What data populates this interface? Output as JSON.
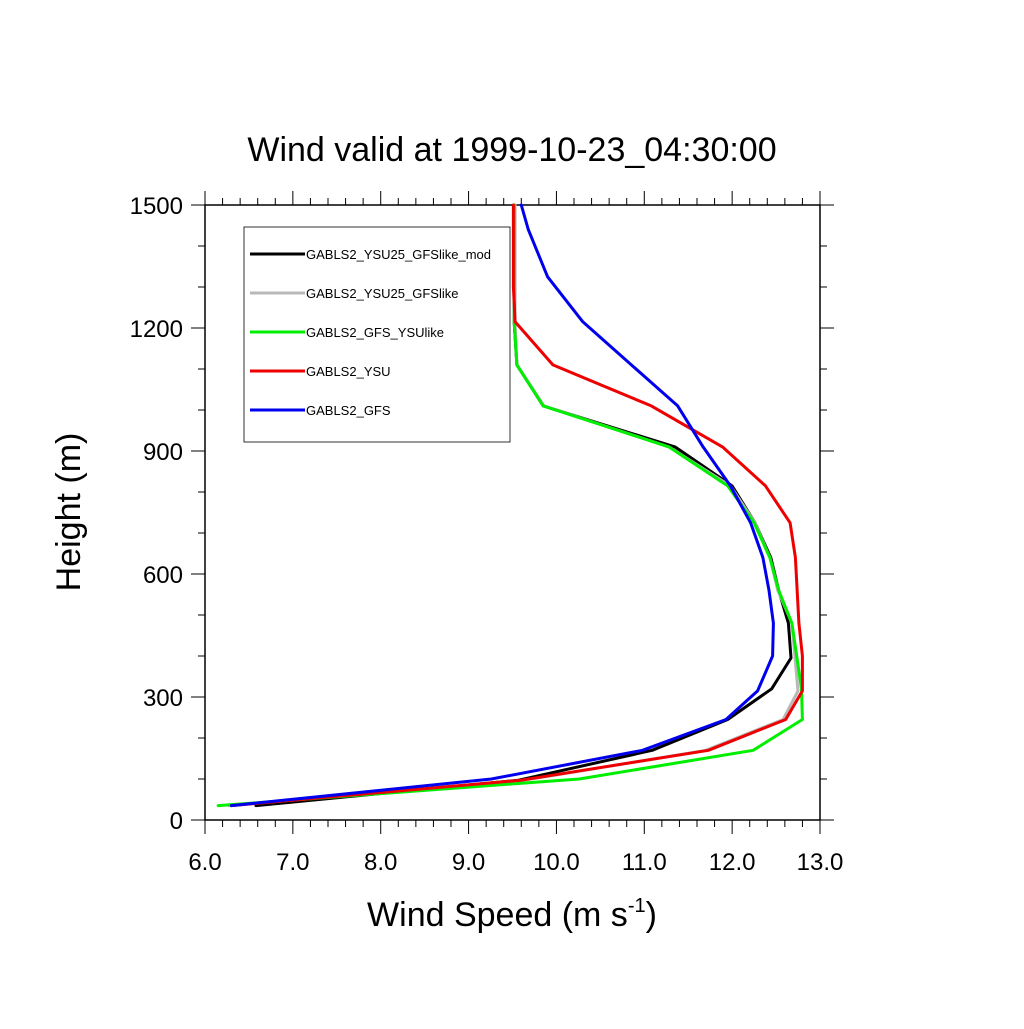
{
  "chart_data": {
    "type": "line",
    "title": "Wind valid at 1999-10-23_04:30:00",
    "xlabel": "Wind Speed (m s",
    "xlabel_superscript": "-1",
    "xlabel_suffix": ")",
    "ylabel": "Height (m)",
    "xlim": [
      6.0,
      13.0
    ],
    "ylim": [
      0,
      1500
    ],
    "xticks": [
      6.0,
      7.0,
      8.0,
      9.0,
      10.0,
      11.0,
      12.0,
      13.0
    ],
    "xtick_labels": [
      "6.0",
      "7.0",
      "8.0",
      "9.0",
      "10.0",
      "11.0",
      "12.0",
      "13.0"
    ],
    "yticks": [
      0,
      300,
      600,
      900,
      1200,
      1500
    ],
    "ytick_labels": [
      "0",
      "300",
      "600",
      "900",
      "1200",
      "1500"
    ],
    "grid": false,
    "legend_position": "top-left",
    "series": [
      {
        "name": "GABLS2_YSU25_GFSlike_mod",
        "color": "#000000",
        "x": [
          6.58,
          9.57,
          11.09,
          11.95,
          12.45,
          12.67,
          12.64,
          12.53,
          12.44,
          12.26,
          12.0,
          11.35,
          9.85,
          9.55,
          9.52,
          9.52
        ],
        "y": [
          35,
          97,
          170,
          245,
          320,
          395,
          480,
          560,
          640,
          725,
          815,
          910,
          1010,
          1110,
          1210,
          1500
        ]
      },
      {
        "name": "GABLS2_YSU25_GFSlike",
        "color": "#b8b8b8",
        "x": [
          6.27,
          9.64,
          11.7,
          12.58,
          12.75,
          12.68,
          12.52,
          12.43,
          12.26,
          11.98,
          11.28,
          9.86,
          9.55,
          9.53,
          9.53
        ],
        "y": [
          35,
          97,
          170,
          245,
          315,
          480,
          560,
          640,
          725,
          815,
          910,
          1010,
          1110,
          1210,
          1500
        ]
      },
      {
        "name": "GABLS2_GFS_YSUlike",
        "color": "#00ee00",
        "x": [
          6.15,
          10.26,
          12.24,
          12.8,
          12.79,
          12.68,
          12.53,
          12.43,
          12.25,
          11.95,
          11.28,
          9.85,
          9.55,
          9.52,
          9.52
        ],
        "y": [
          35,
          100,
          170,
          245,
          320,
          480,
          560,
          640,
          725,
          815,
          910,
          1010,
          1110,
          1210,
          1500
        ]
      },
      {
        "name": "GABLS2_YSU",
        "color": "#ee0000",
        "x": [
          6.3,
          9.6,
          11.73,
          12.61,
          12.8,
          12.8,
          12.76,
          12.72,
          12.66,
          12.38,
          11.89,
          11.08,
          9.96,
          9.53,
          9.51,
          9.51
        ],
        "y": [
          35,
          97,
          170,
          245,
          315,
          400,
          480,
          640,
          725,
          815,
          910,
          1010,
          1110,
          1215,
          1300,
          1500
        ]
      },
      {
        "name": "GABLS2_GFS",
        "color": "#0000ee",
        "x": [
          6.3,
          9.26,
          10.98,
          11.93,
          12.29,
          12.46,
          12.47,
          12.42,
          12.35,
          12.21,
          11.98,
          11.67,
          11.38,
          10.3,
          9.9,
          9.68,
          9.6
        ],
        "y": [
          35,
          100,
          170,
          245,
          315,
          400,
          480,
          560,
          640,
          725,
          815,
          910,
          1010,
          1215,
          1325,
          1440,
          1500
        ]
      }
    ]
  }
}
